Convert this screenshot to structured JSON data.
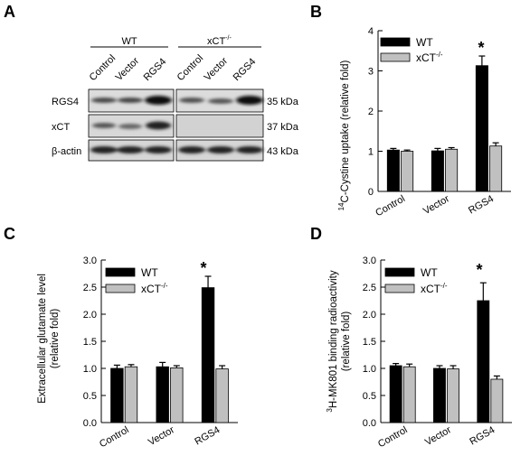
{
  "panel_letters": [
    "A",
    "B",
    "C",
    "D"
  ],
  "blot": {
    "groups": [
      "WT",
      "xCT",
      "-/-"
    ],
    "lanes": [
      "Control",
      "Vector",
      "RGS4",
      "Control",
      "Vector",
      "RGS4"
    ],
    "rows": [
      "RGS4",
      "xCT",
      "β-actin"
    ],
    "sizes": [
      "35 kDa",
      "37 kDa",
      "43 kDa"
    ]
  },
  "chart_data": [
    {
      "panel": "B",
      "type": "bar",
      "categories": [
        "Control",
        "Vector",
        "RGS4"
      ],
      "series": [
        {
          "name": "WT",
          "values": [
            1.03,
            1.01,
            3.13
          ],
          "errors": [
            0.04,
            0.06,
            0.24
          ],
          "color": "#000000"
        },
        {
          "name": "xCT-/-",
          "values": [
            1.0,
            1.05,
            1.13
          ],
          "errors": [
            0.03,
            0.04,
            0.08
          ],
          "color": "#c0c0c0"
        }
      ],
      "ylabel": [
        "14",
        "C-Cystine uptake (relative fold)"
      ],
      "ylim": [
        0,
        4
      ],
      "yticks": [
        "0",
        "1",
        "2",
        "3",
        "4"
      ],
      "annotation": "*",
      "legend": [
        "WT",
        "xCT",
        "-/-"
      ],
      "grid": false
    },
    {
      "panel": "C",
      "type": "bar",
      "categories": [
        "Control",
        "Vector",
        "RGS4"
      ],
      "series": [
        {
          "name": "WT",
          "values": [
            1.0,
            1.03,
            2.49
          ],
          "errors": [
            0.06,
            0.08,
            0.21
          ],
          "color": "#000000"
        },
        {
          "name": "xCT-/-",
          "values": [
            1.03,
            1.01,
            0.99
          ],
          "errors": [
            0.04,
            0.04,
            0.06
          ],
          "color": "#c0c0c0"
        }
      ],
      "ylabel": [
        "Extracellular glutamate level",
        "(relative fold)"
      ],
      "ylim": [
        0,
        3
      ],
      "yticks": [
        "0.0",
        "0.5",
        "1.0",
        "1.5",
        "2.0",
        "2.5",
        "3.0"
      ],
      "annotation": "*",
      "legend": [
        "WT",
        "xCT",
        "-/-"
      ],
      "grid": false
    },
    {
      "panel": "D",
      "type": "bar",
      "categories": [
        "Control",
        "Vector",
        "RGS4"
      ],
      "series": [
        {
          "name": "WT",
          "values": [
            1.05,
            1.0,
            2.25
          ],
          "errors": [
            0.04,
            0.05,
            0.33
          ],
          "color": "#000000"
        },
        {
          "name": "xCT-/-",
          "values": [
            1.03,
            0.99,
            0.8
          ],
          "errors": [
            0.05,
            0.06,
            0.06
          ],
          "color": "#c0c0c0"
        }
      ],
      "ylabel": [
        "3",
        "H-MK801 binding radioactivity",
        "(relative fold)"
      ],
      "ylim": [
        0,
        3
      ],
      "yticks": [
        "0.0",
        "0.5",
        "1.0",
        "1.5",
        "2.0",
        "2.5",
        "3.0"
      ],
      "annotation": "*",
      "legend": [
        "WT",
        "xCT",
        "-/-"
      ],
      "grid": false
    }
  ]
}
